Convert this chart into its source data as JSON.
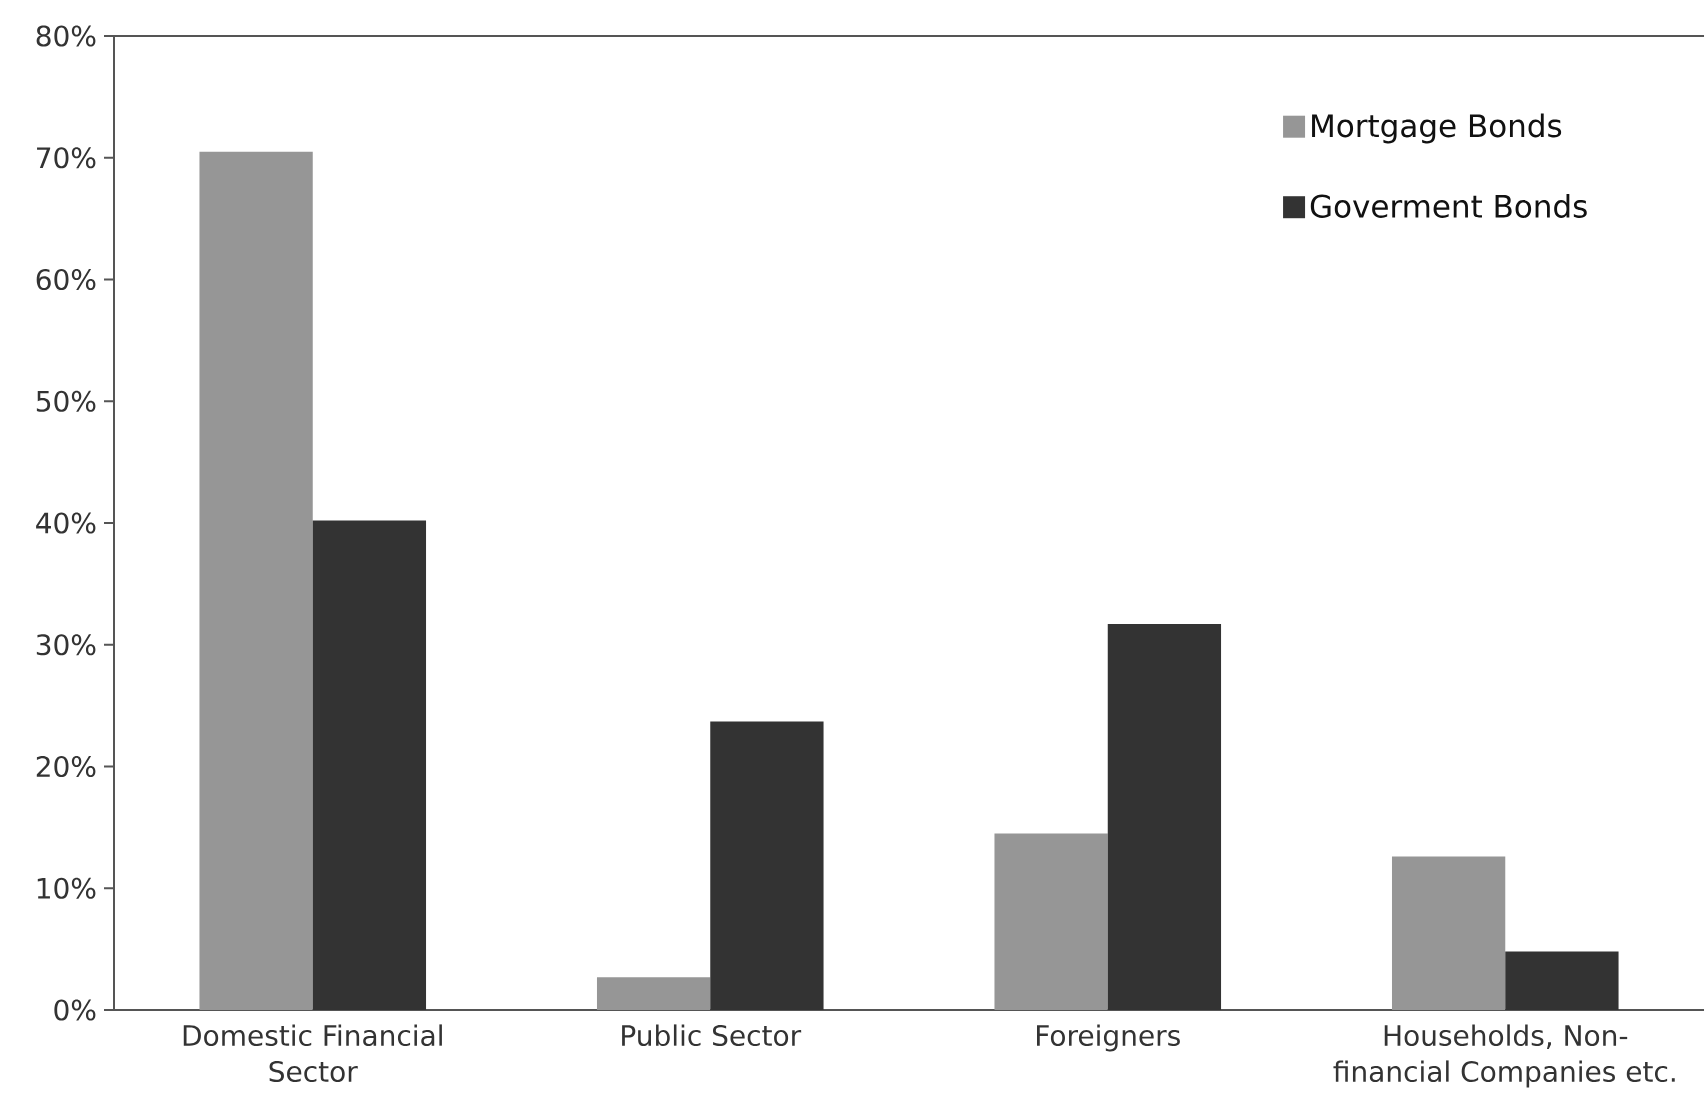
{
  "chart_data": {
    "type": "bar",
    "categories": [
      "Domestic Financial Sector",
      "Public Sector",
      "Foreigners",
      "Households, Non-financial Companies etc."
    ],
    "series": [
      {
        "name": "Mortgage Bonds",
        "color": "#969696",
        "values": [
          70.5,
          2.7,
          14.5,
          12.6
        ]
      },
      {
        "name": "Goverment Bonds",
        "color": "#333333",
        "values": [
          40.2,
          23.7,
          31.7,
          4.8
        ]
      }
    ],
    "ylim": [
      0,
      80
    ],
    "yticks": [
      {
        "value": 0,
        "label": "0%"
      },
      {
        "value": 10,
        "label": "10%"
      },
      {
        "value": 20,
        "label": "20%"
      },
      {
        "value": 30,
        "label": "30%"
      },
      {
        "value": 40,
        "label": "40%"
      },
      {
        "value": 50,
        "label": "50%"
      },
      {
        "value": 60,
        "label": "60%"
      },
      {
        "value": 70,
        "label": "70%"
      },
      {
        "value": 80,
        "label": "80%"
      }
    ],
    "legend": "top right"
  }
}
